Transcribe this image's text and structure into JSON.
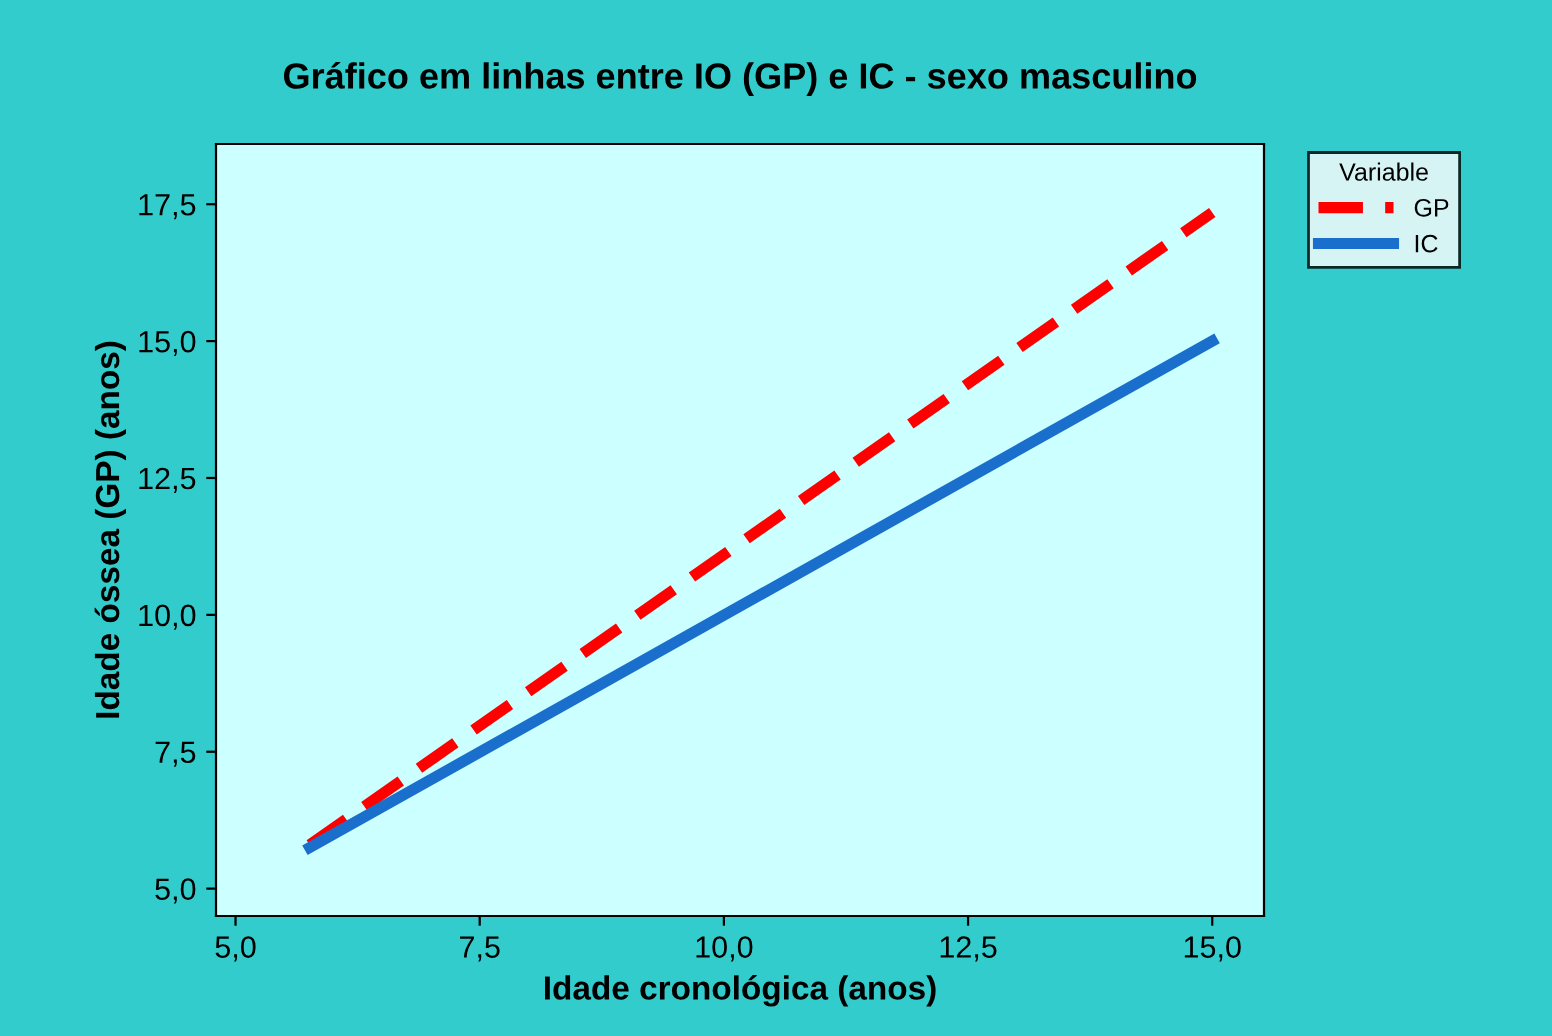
{
  "chart_data": {
    "type": "line",
    "title": "Gráfico em linhas entre IO (GP) e IC - sexo masculino",
    "xlabel": "Idade cronológica (anos)",
    "ylabel": "Idade óssea (GP) (anos)",
    "legend_title": "Variable",
    "legend": "top right",
    "series": [
      {
        "name": "GP",
        "color": "#ff0000",
        "values": [
          5.8,
          17.35
        ],
        "line_style": "dashed"
      },
      {
        "name": "IC",
        "color": "#1a6fcc",
        "values": [
          5.75,
          15.0
        ],
        "line_style": "solid"
      }
    ],
    "x": [
      5.76,
      15.0
    ],
    "xlim": [
      4.8,
      15.53
    ],
    "ylim": [
      4.5,
      18.6
    ],
    "xticks": [
      {
        "value": 5,
        "label": "5,0"
      },
      {
        "value": 7.5,
        "label": "7,5"
      },
      {
        "value": 10,
        "label": "10,0"
      },
      {
        "value": 12.5,
        "label": "12,5"
      },
      {
        "value": 15,
        "label": "15,0"
      }
    ],
    "yticks": [
      {
        "value": 5,
        "label": "5,0"
      },
      {
        "value": 7.5,
        "label": "7,5"
      },
      {
        "value": 10,
        "label": "10,0"
      },
      {
        "value": 12.5,
        "label": "12,5"
      },
      {
        "value": 15,
        "label": "15,0"
      },
      {
        "value": 17.5,
        "label": "17,5"
      }
    ],
    "grid": false
  }
}
